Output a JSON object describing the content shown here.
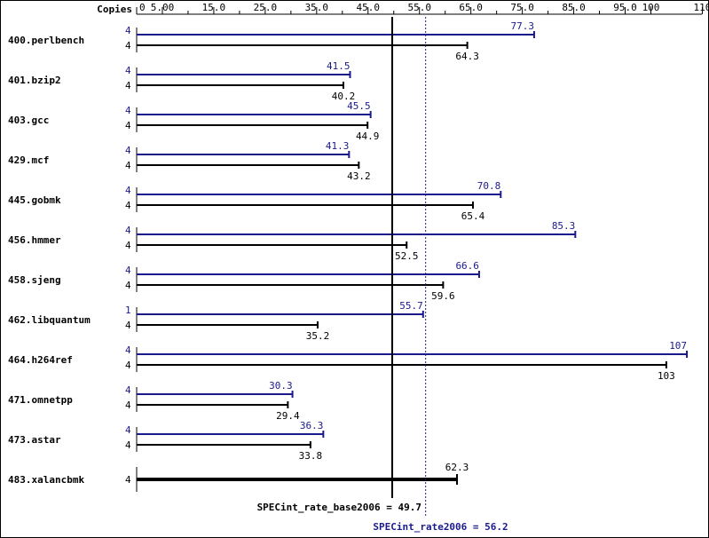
{
  "chart_data": {
    "type": "bar",
    "axis": {
      "header": "Copies",
      "ticks": [
        {
          "value": 0,
          "label": "0"
        },
        {
          "value": 5,
          "label": "5.00"
        },
        {
          "value": 15,
          "label": "15.0"
        },
        {
          "value": 25,
          "label": "25.0"
        },
        {
          "value": 35,
          "label": "35.0"
        },
        {
          "value": 45,
          "label": "45.0"
        },
        {
          "value": 55,
          "label": "55.0"
        },
        {
          "value": 65,
          "label": "65.0"
        },
        {
          "value": 75,
          "label": "75.0"
        },
        {
          "value": 85,
          "label": "85.0"
        },
        {
          "value": 95,
          "label": "95.0"
        },
        {
          "value": 100,
          "label": "100"
        },
        {
          "value": 110,
          "label": "110"
        }
      ],
      "xlim": [
        0,
        110
      ]
    },
    "colors": {
      "peak": "#1a1a8c",
      "base": "#000000"
    },
    "benchmarks": [
      {
        "name": "400.perlbench",
        "peak": {
          "copies": "4",
          "value": 77.3,
          "label": "77.3"
        },
        "base": {
          "copies": "4",
          "value": 64.3,
          "label": "64.3"
        }
      },
      {
        "name": "401.bzip2",
        "peak": {
          "copies": "4",
          "value": 41.5,
          "label": "41.5"
        },
        "base": {
          "copies": "4",
          "value": 40.2,
          "label": "40.2"
        }
      },
      {
        "name": "403.gcc",
        "peak": {
          "copies": "4",
          "value": 45.5,
          "label": "45.5"
        },
        "base": {
          "copies": "4",
          "value": 44.9,
          "label": "44.9"
        }
      },
      {
        "name": "429.mcf",
        "peak": {
          "copies": "4",
          "value": 41.3,
          "label": "41.3"
        },
        "base": {
          "copies": "4",
          "value": 43.2,
          "label": "43.2"
        }
      },
      {
        "name": "445.gobmk",
        "peak": {
          "copies": "4",
          "value": 70.8,
          "label": "70.8"
        },
        "base": {
          "copies": "4",
          "value": 65.4,
          "label": "65.4"
        }
      },
      {
        "name": "456.hmmer",
        "peak": {
          "copies": "4",
          "value": 85.3,
          "label": "85.3"
        },
        "base": {
          "copies": "4",
          "value": 52.5,
          "label": "52.5"
        }
      },
      {
        "name": "458.sjeng",
        "peak": {
          "copies": "4",
          "value": 66.6,
          "label": "66.6"
        },
        "base": {
          "copies": "4",
          "value": 59.6,
          "label": "59.6"
        }
      },
      {
        "name": "462.libquantum",
        "peak": {
          "copies": "1",
          "value": 55.7,
          "label": "55.7"
        },
        "base": {
          "copies": "4",
          "value": 35.2,
          "label": "35.2"
        }
      },
      {
        "name": "464.h264ref",
        "peak": {
          "copies": "4",
          "value": 107,
          "label": "107"
        },
        "base": {
          "copies": "4",
          "value": 103,
          "label": "103"
        }
      },
      {
        "name": "471.omnetpp",
        "peak": {
          "copies": "4",
          "value": 30.3,
          "label": "30.3"
        },
        "base": {
          "copies": "4",
          "value": 29.4,
          "label": "29.4"
        }
      },
      {
        "name": "473.astar",
        "peak": {
          "copies": "4",
          "value": 36.3,
          "label": "36.3"
        },
        "base": {
          "copies": "4",
          "value": 33.8,
          "label": "33.8"
        }
      },
      {
        "name": "483.xalancbmk",
        "peak": null,
        "base": {
          "copies": "4",
          "value": 62.3,
          "label": "62.3"
        }
      }
    ],
    "reference_lines": {
      "base": {
        "label": "SPECint_rate_base2006 = 49.7",
        "value": 49.7
      },
      "peak": {
        "label": "SPECint_rate2006 = 56.2",
        "value": 56.2
      }
    }
  }
}
